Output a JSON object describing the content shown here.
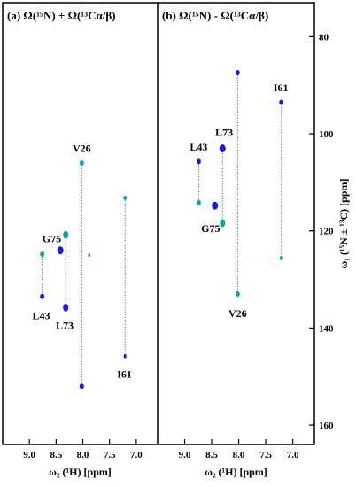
{
  "chart_data": {
    "type": "scatter",
    "colors": {
      "nitrogen": "#1a1adc",
      "carbon": "#14a0a0"
    },
    "x_axis": {
      "label": "ω₂ (¹H) [ppm]",
      "range": [
        9.5,
        6.6
      ],
      "ticks": [
        "9.0",
        "8.5",
        "8.0",
        "7.5",
        "7.0"
      ],
      "tick_values": [
        9.0,
        8.5,
        8.0,
        7.5,
        7.0
      ]
    },
    "y_axis": {
      "label": "ω₁ (¹⁵N ± ¹³C) [ppm]",
      "range": [
        73,
        164
      ],
      "ticks": [
        "80",
        "100",
        "120",
        "140",
        "160"
      ],
      "tick_values": [
        80,
        100,
        120,
        140,
        160
      ]
    },
    "panels": [
      {
        "title": "(a) Ω(¹⁵N) + Ω(¹³Cα/β)",
        "links": [
          {
            "x": 8.76,
            "y1": 124.8,
            "y2": 133.5
          },
          {
            "x": 8.32,
            "y1": 120.8,
            "y2": 135.8
          },
          {
            "x": 8.02,
            "y1": 106.0,
            "y2": 152.0
          },
          {
            "x": 7.21,
            "y1": 113.2,
            "y2": 145.8
          }
        ],
        "peaks": [
          {
            "x": 8.76,
            "y": 124.8,
            "color": "carbon",
            "rx": 2.5,
            "ry": 3
          },
          {
            "x": 8.76,
            "y": 133.5,
            "color": "nitrogen",
            "rx": 2.5,
            "ry": 3
          },
          {
            "x": 8.42,
            "y": 124.0,
            "color": "nitrogen",
            "rx": 3.5,
            "ry": 4.5
          },
          {
            "x": 8.32,
            "y": 120.8,
            "color": "carbon",
            "rx": 3,
            "ry": 4.5
          },
          {
            "x": 8.32,
            "y": 135.8,
            "color": "nitrogen",
            "rx": 3,
            "ry": 4.5
          },
          {
            "x": 8.02,
            "y": 106.0,
            "color": "carbon",
            "rx": 2.5,
            "ry": 3
          },
          {
            "x": 8.02,
            "y": 152.0,
            "color": "nitrogen",
            "rx": 2.5,
            "ry": 3
          },
          {
            "x": 7.88,
            "y": 125.0,
            "color": "carbon",
            "rx": 1.5,
            "ry": 2
          },
          {
            "x": 7.21,
            "y": 113.2,
            "color": "carbon",
            "rx": 2,
            "ry": 2.5
          },
          {
            "x": 7.21,
            "y": 145.8,
            "color": "nitrogen",
            "rx": 1.5,
            "ry": 2.5
          }
        ],
        "labels": [
          {
            "text": "V26",
            "x": 8.02,
            "y": 103.0
          },
          {
            "text": "G75",
            "x": 8.58,
            "y": 121.6
          },
          {
            "text": "L43",
            "x": 8.78,
            "y": 137.5
          },
          {
            "text": "L73",
            "x": 8.34,
            "y": 139.5
          },
          {
            "text": "I61",
            "x": 7.22,
            "y": 149.5
          }
        ]
      },
      {
        "title": "(b) Ω(¹⁵N) - Ω(¹³Cα/β)",
        "links": [
          {
            "x": 8.74,
            "y1": 105.7,
            "y2": 114.2
          },
          {
            "x": 8.3,
            "y1": 103.0,
            "y2": 118.4
          },
          {
            "x": 8.02,
            "y1": 87.4,
            "y2": 133.0
          },
          {
            "x": 7.21,
            "y1": 93.5,
            "y2": 125.6
          }
        ],
        "peaks": [
          {
            "x": 8.74,
            "y": 105.7,
            "color": "nitrogen",
            "rx": 2.5,
            "ry": 3
          },
          {
            "x": 8.74,
            "y": 114.2,
            "color": "carbon",
            "rx": 2.5,
            "ry": 3
          },
          {
            "x": 8.3,
            "y": 103.0,
            "color": "nitrogen",
            "rx": 3.5,
            "ry": 4.5
          },
          {
            "x": 8.3,
            "y": 118.4,
            "color": "carbon",
            "rx": 3,
            "ry": 4.5
          },
          {
            "x": 8.44,
            "y": 114.8,
            "color": "nitrogen",
            "rx": 3.5,
            "ry": 4.5
          },
          {
            "x": 8.02,
            "y": 87.4,
            "color": "nitrogen",
            "rx": 2.5,
            "ry": 3
          },
          {
            "x": 8.02,
            "y": 133.0,
            "color": "carbon",
            "rx": 2.5,
            "ry": 3
          },
          {
            "x": 7.21,
            "y": 93.5,
            "color": "nitrogen",
            "rx": 2.5,
            "ry": 3
          },
          {
            "x": 7.21,
            "y": 125.6,
            "color": "carbon",
            "rx": 2,
            "ry": 2.5
          }
        ],
        "labels": [
          {
            "text": "L43",
            "x": 8.74,
            "y": 102.7
          },
          {
            "text": "L73",
            "x": 8.27,
            "y": 99.7
          },
          {
            "text": "G75",
            "x": 8.52,
            "y": 119.5
          },
          {
            "text": "V26",
            "x": 8.02,
            "y": 137.0
          },
          {
            "text": "I61",
            "x": 7.22,
            "y": 90.5
          }
        ]
      }
    ]
  }
}
